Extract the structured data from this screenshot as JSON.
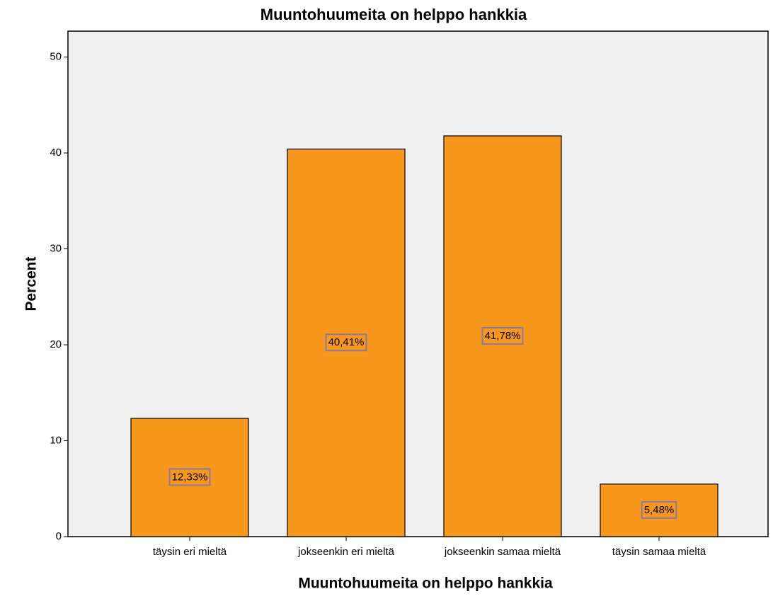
{
  "chart_data": {
    "type": "bar",
    "title": "Muuntohuumeita on helppo hankkia",
    "x_label": "Muuntohuumeita on helppo hankkia",
    "y_label": "Percent",
    "categories": [
      "täysin eri mieltä",
      "jokseenkin eri mieltä",
      "jokseenkin samaa mieltä",
      "täysin samaa mieltä"
    ],
    "values": [
      12.33,
      40.41,
      41.78,
      5.48
    ],
    "value_labels": [
      "12,33%",
      "40,41%",
      "41,78%",
      "5,48%"
    ],
    "color": "#f7981d",
    "ylim": [
      0,
      52.7
    ],
    "yticks": [
      0,
      10,
      20,
      30,
      40,
      50
    ],
    "grid": false
  }
}
